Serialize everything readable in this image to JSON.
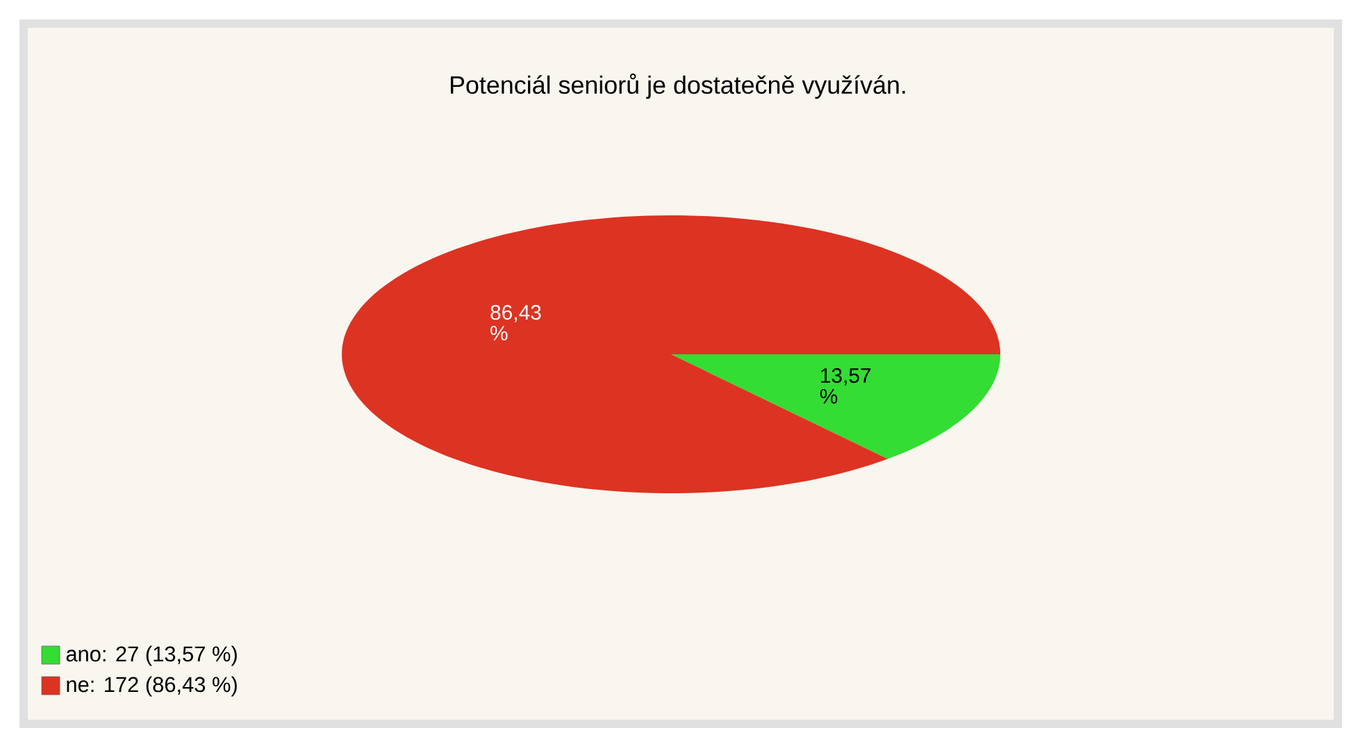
{
  "chart_data": {
    "type": "pie",
    "title": "Potenciál seniorů je dostatečně využíván.",
    "categories": [
      "ano: 27 (13,57 %)",
      "ne: 172 (86,43 %)"
    ],
    "values": [
      13.57,
      86.43
    ],
    "value_labels": [
      "13,57 %",
      "86,43 %"
    ],
    "colors": [
      "#33dd33",
      "#dd3322"
    ],
    "legend": "bottom left"
  }
}
